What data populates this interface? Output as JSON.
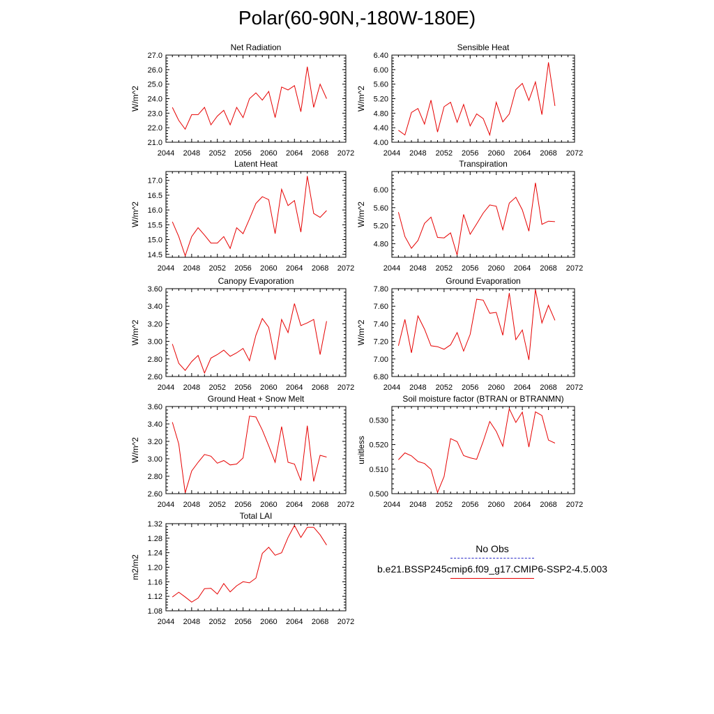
{
  "title": "Polar(60-90N,-180W-180E)",
  "colors": {
    "line": "#e60000",
    "obs": "#2828c8"
  },
  "legend": {
    "obs_label": "No Obs",
    "model_label": "b.e21.BSSP245cmip6.f09_g17.CMIP6-SSP2-4.5.003"
  },
  "chart_data": [
    {
      "type": "line",
      "title": "Net Radiation",
      "ylabel": "W/m^2",
      "xlim": [
        2044,
        2072
      ],
      "xticks": [
        "2044",
        "2048",
        "2052",
        "2056",
        "2060",
        "2064",
        "2068",
        "2072"
      ],
      "ylim": [
        21.0,
        27.0
      ],
      "yticks": [
        "21.0",
        "22.0",
        "23.0",
        "24.0",
        "25.0",
        "26.0",
        "27.0"
      ],
      "x": [
        2045,
        2046,
        2047,
        2048,
        2049,
        2050,
        2051,
        2052,
        2053,
        2054,
        2055,
        2056,
        2057,
        2058,
        2059,
        2060,
        2061,
        2062,
        2063,
        2064,
        2065,
        2066,
        2067,
        2068,
        2069
      ],
      "series": [
        {
          "values": [
            23.4,
            22.5,
            21.9,
            22.9,
            22.9,
            23.4,
            22.2,
            22.8,
            23.2,
            22.2,
            23.4,
            22.7,
            24.0,
            24.4,
            23.9,
            24.5,
            22.7,
            24.8,
            24.6,
            24.9,
            23.1,
            26.2,
            23.4,
            25.0,
            24.0
          ]
        }
      ]
    },
    {
      "type": "line",
      "title": "Sensible Heat",
      "ylabel": "W/m^2",
      "xlim": [
        2044,
        2072
      ],
      "xticks": [
        "2044",
        "2048",
        "2052",
        "2056",
        "2060",
        "2064",
        "2068",
        "2072"
      ],
      "ylim": [
        4.0,
        6.4
      ],
      "yticks": [
        "4.00",
        "4.40",
        "4.80",
        "5.20",
        "5.60",
        "6.00",
        "6.40"
      ],
      "x": [
        2045,
        2046,
        2047,
        2048,
        2049,
        2050,
        2051,
        2052,
        2053,
        2054,
        2055,
        2056,
        2057,
        2058,
        2059,
        2060,
        2061,
        2062,
        2063,
        2064,
        2065,
        2066,
        2067,
        2068,
        2069
      ],
      "series": [
        {
          "values": [
            4.33,
            4.2,
            4.82,
            4.93,
            4.5,
            5.16,
            4.28,
            4.98,
            5.1,
            4.55,
            5.04,
            4.45,
            4.78,
            4.65,
            4.2,
            5.1,
            4.56,
            4.78,
            5.45,
            5.62,
            5.15,
            5.66,
            4.76,
            6.2,
            5.0
          ]
        }
      ]
    },
    {
      "type": "line",
      "title": "Latent Heat",
      "ylabel": "W/m^2",
      "xlim": [
        2044,
        2072
      ],
      "xticks": [
        "2044",
        "2048",
        "2052",
        "2056",
        "2060",
        "2064",
        "2068",
        "2072"
      ],
      "ylim": [
        14.4,
        17.3
      ],
      "yticks": [
        "14.5",
        "15.0",
        "15.5",
        "16.0",
        "16.5",
        "17.0"
      ],
      "x": [
        2045,
        2046,
        2047,
        2048,
        2049,
        2050,
        2051,
        2052,
        2053,
        2054,
        2055,
        2056,
        2057,
        2058,
        2059,
        2060,
        2061,
        2062,
        2063,
        2064,
        2065,
        2066,
        2067,
        2068,
        2069
      ],
      "series": [
        {
          "values": [
            15.6,
            15.1,
            14.45,
            15.1,
            15.4,
            15.15,
            14.88,
            14.88,
            15.1,
            14.7,
            15.4,
            15.2,
            15.7,
            16.22,
            16.45,
            16.35,
            15.2,
            16.7,
            16.15,
            16.32,
            15.25,
            17.15,
            15.88,
            15.75,
            15.98
          ]
        }
      ]
    },
    {
      "type": "line",
      "title": "Transpiration",
      "ylabel": "W/m^2",
      "xlim": [
        2044,
        2072
      ],
      "xticks": [
        "2044",
        "2048",
        "2052",
        "2056",
        "2060",
        "2064",
        "2068",
        "2072"
      ],
      "ylim": [
        4.5,
        6.4
      ],
      "yticks": [
        "4.80",
        "5.20",
        "5.60",
        "6.00"
      ],
      "x": [
        2045,
        2046,
        2047,
        2048,
        2049,
        2050,
        2051,
        2052,
        2053,
        2054,
        2055,
        2056,
        2057,
        2058,
        2059,
        2060,
        2061,
        2062,
        2063,
        2064,
        2065,
        2066,
        2067,
        2068,
        2069
      ],
      "series": [
        {
          "values": [
            5.5,
            4.96,
            4.7,
            4.87,
            5.25,
            5.39,
            4.94,
            4.93,
            5.04,
            4.55,
            5.45,
            5.01,
            5.24,
            5.48,
            5.66,
            5.63,
            5.11,
            5.7,
            5.83,
            5.55,
            5.08,
            6.15,
            5.23,
            5.3,
            5.29
          ]
        }
      ]
    },
    {
      "type": "line",
      "title": "Canopy Evaporation",
      "ylabel": "W/m^2",
      "xlim": [
        2044,
        2072
      ],
      "xticks": [
        "2044",
        "2048",
        "2052",
        "2056",
        "2060",
        "2064",
        "2068",
        "2072"
      ],
      "ylim": [
        2.6,
        3.6
      ],
      "yticks": [
        "2.60",
        "2.80",
        "3.00",
        "3.20",
        "3.40",
        "3.60"
      ],
      "x": [
        2045,
        2046,
        2047,
        2048,
        2049,
        2050,
        2051,
        2052,
        2053,
        2054,
        2055,
        2056,
        2057,
        2058,
        2059,
        2060,
        2061,
        2062,
        2063,
        2064,
        2065,
        2066,
        2067,
        2068,
        2069
      ],
      "series": [
        {
          "values": [
            2.97,
            2.75,
            2.67,
            2.77,
            2.84,
            2.64,
            2.81,
            2.85,
            2.9,
            2.83,
            2.87,
            2.92,
            2.78,
            3.07,
            3.26,
            3.16,
            2.79,
            3.25,
            3.1,
            3.43,
            3.18,
            3.21,
            3.25,
            2.85,
            3.23
          ]
        }
      ]
    },
    {
      "type": "line",
      "title": "Ground Evaporation",
      "ylabel": "W/m^2",
      "xlim": [
        2044,
        2072
      ],
      "xticks": [
        "2044",
        "2048",
        "2052",
        "2056",
        "2060",
        "2064",
        "2068",
        "2072"
      ],
      "ylim": [
        6.8,
        7.8
      ],
      "yticks": [
        "6.80",
        "7.00",
        "7.20",
        "7.40",
        "7.60",
        "7.80"
      ],
      "x": [
        2045,
        2046,
        2047,
        2048,
        2049,
        2050,
        2051,
        2052,
        2053,
        2054,
        2055,
        2056,
        2057,
        2058,
        2059,
        2060,
        2061,
        2062,
        2063,
        2064,
        2065,
        2066,
        2067,
        2068,
        2069
      ],
      "series": [
        {
          "values": [
            7.15,
            7.45,
            7.07,
            7.49,
            7.34,
            7.15,
            7.14,
            7.11,
            7.16,
            7.3,
            7.09,
            7.28,
            7.68,
            7.67,
            7.52,
            7.53,
            7.27,
            7.75,
            7.22,
            7.33,
            6.99,
            7.79,
            7.41,
            7.61,
            7.44
          ]
        }
      ]
    },
    {
      "type": "line",
      "title": "Ground Heat + Snow Melt",
      "ylabel": "W/m^2",
      "xlim": [
        2044,
        2072
      ],
      "xticks": [
        "2044",
        "2048",
        "2052",
        "2056",
        "2060",
        "2064",
        "2068",
        "2072"
      ],
      "ylim": [
        2.6,
        3.6
      ],
      "yticks": [
        "2.60",
        "2.80",
        "3.00",
        "3.20",
        "3.40",
        "3.60"
      ],
      "x": [
        2045,
        2046,
        2047,
        2048,
        2049,
        2050,
        2051,
        2052,
        2053,
        2054,
        2055,
        2056,
        2057,
        2058,
        2059,
        2060,
        2061,
        2062,
        2063,
        2064,
        2065,
        2066,
        2067,
        2068,
        2069
      ],
      "series": [
        {
          "values": [
            3.42,
            3.17,
            2.61,
            2.86,
            2.96,
            3.05,
            3.03,
            2.95,
            2.98,
            2.93,
            2.94,
            3.01,
            3.49,
            3.48,
            3.33,
            3.15,
            2.96,
            3.37,
            2.96,
            2.94,
            2.75,
            3.38,
            2.74,
            3.04,
            3.02
          ]
        }
      ]
    },
    {
      "type": "line",
      "title": "Soil moisture factor (BTRAN or BTRANMN)",
      "ylabel": "unitless",
      "xlim": [
        2044,
        2072
      ],
      "xticks": [
        "2044",
        "2048",
        "2052",
        "2056",
        "2060",
        "2064",
        "2068",
        "2072"
      ],
      "ylim": [
        0.5,
        0.5355
      ],
      "yticks": [
        "0.500",
        "0.510",
        "0.520",
        "0.530"
      ],
      "x": [
        2045,
        2046,
        2047,
        2048,
        2049,
        2050,
        2051,
        2052,
        2053,
        2054,
        2055,
        2056,
        2057,
        2058,
        2059,
        2060,
        2061,
        2062,
        2063,
        2064,
        2065,
        2066,
        2067,
        2068,
        2069
      ],
      "series": [
        {
          "values": [
            0.5138,
            0.5166,
            0.5154,
            0.5131,
            0.5123,
            0.5099,
            0.5005,
            0.507,
            0.5224,
            0.5212,
            0.5155,
            0.5146,
            0.514,
            0.5213,
            0.5294,
            0.5254,
            0.5193,
            0.5346,
            0.529,
            0.5332,
            0.519,
            0.5333,
            0.5318,
            0.5218,
            0.5206
          ]
        }
      ]
    },
    {
      "type": "line",
      "title": "Total LAI",
      "ylabel": "m2/m2",
      "xlim": [
        2044,
        2072
      ],
      "xticks": [
        "2044",
        "2048",
        "2052",
        "2056",
        "2060",
        "2064",
        "2068",
        "2072"
      ],
      "ylim": [
        1.08,
        1.32
      ],
      "yticks": [
        "1.08",
        "1.12",
        "1.16",
        "1.20",
        "1.24",
        "1.28",
        "1.32"
      ],
      "x": [
        2045,
        2046,
        2047,
        2048,
        2049,
        2050,
        2051,
        2052,
        2053,
        2054,
        2055,
        2056,
        2057,
        2058,
        2059,
        2060,
        2061,
        2062,
        2063,
        2064,
        2065,
        2066,
        2067,
        2068,
        2069
      ],
      "series": [
        {
          "values": [
            1.118,
            1.131,
            1.118,
            1.104,
            1.115,
            1.141,
            1.142,
            1.126,
            1.155,
            1.132,
            1.149,
            1.16,
            1.157,
            1.17,
            1.238,
            1.255,
            1.233,
            1.24,
            1.282,
            1.315,
            1.282,
            1.31,
            1.31,
            1.289,
            1.261
          ]
        }
      ]
    }
  ]
}
